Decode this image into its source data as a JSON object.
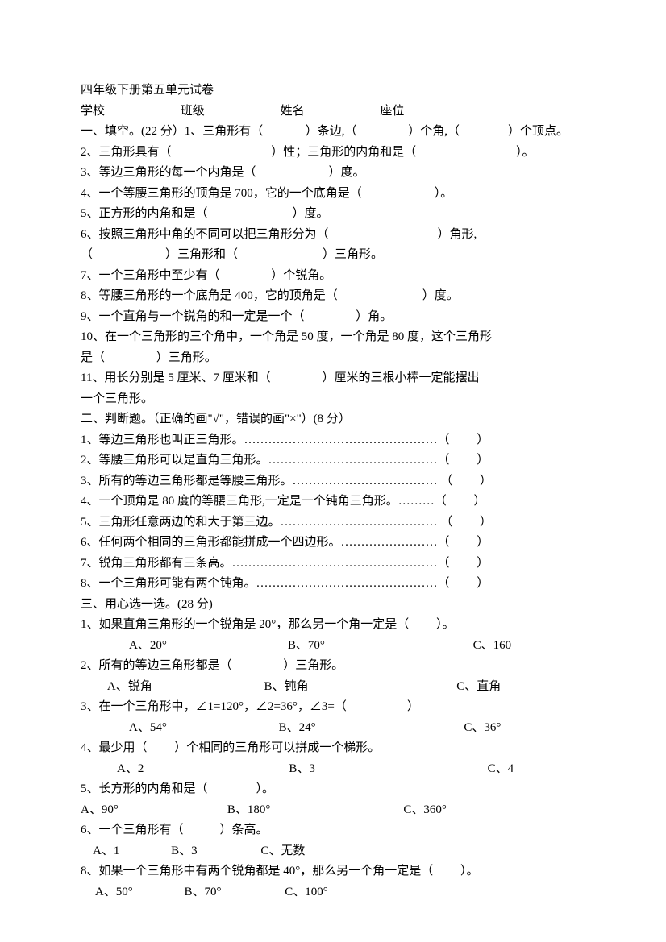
{
  "title": "四年级下册第五单元试卷",
  "header": {
    "school_lbl": "学校",
    "class_lbl": "班级",
    "name_lbl": "姓名",
    "seat_lbl": "座位"
  },
  "s1": {
    "heading_and_q1": "一、填空。(22 分）1、三角形有（ 　　　 ）条边,（　　　　 ）个角,（　　　　）个顶点。",
    "q2": "2、三角形具有（ 　　　　　　　　）性；三角形的内角和是（　　　　　　　　 ）。",
    "q3": "3、等边三角形的每一个内角是（　　　　　　）度。",
    "q4": "4、一个等腰三角形的顶角是 700，它的一个底角是（　　　　　　）。",
    "q5": "5、正方形的内角和是（　　　　　　　）度。",
    "q6_a": " 6、按照三角形中角的不同可以把三角形分为（　　　　　　　　　）角形,",
    "q6_b": "（　　　　　　）三角形和（　　　　　　　）三角形。",
    "q7": "7、一个三角形中至少有（　　　　 ）个锐角。",
    "q8": "8、等腰三角形的一个底角是 400，它的顶角是（　　　　　　　）度。",
    "q9": " 9、一个直角与一个锐角的和一定是一个（　　　　 ）角。",
    "q10_a": " 10、在一个三角形的三个角中，一个角是 50 度，一个角是 80 度，这个三角形",
    "q10_b": "是（　　　　 ）三角形。",
    "q11_a": " 11、用长分别是 5 厘米、7 厘米和（　　　　 ）厘米的三根小棒一定能摆出",
    "q11_b": "一个三角形。"
  },
  "s2": {
    "heading": "二、判断题。（正确的画\"√\"，错误的画\"×\"）(8 分）",
    "q1": " 1、等边三角形也叫正三角形。…………………………………………（　　 ）",
    "q2": " 2、等腰三角形可以是直角三角形。……………………………………（　　 ）",
    "q3": "3、所有的等边三角形都是等腰三角形。……………………………… （　　 ）",
    "q4": " 4、一个顶角是 80 度的等腰三角形,一定是一个钝角三角形。………（　　 ）",
    "q5": "5、三角形任意两边的和大于第三边。………………………………… （　　 ）",
    "q6": " 6、任何两个相同的三角形都能拼成一个四边形。……………………（　　 ）",
    "q7": " 7、锐角三角形都有三条高。……………………………………………（　　 ）",
    "q8": " 8、一个三角形可能有两个钝角。………………………………………（　　 ）"
  },
  "s3": {
    "heading": " 三、用心选一选。(28 分)",
    "q1": "1、如果直角三角形的一个锐角是 20°，那么另一个角一定是（　　 ）。",
    "q1_opts": "　　　　A、20°　　　　　　　　　　B、70°　　　　　　　　　　　　 C、160",
    "q2": "2、所有的等边三角形都是（　　　　 ）三角形。",
    "q2_opts": "　　 A、锐角　　　　　　　　　 B、钝角　　　　　　　　　　　　 C、直角",
    "q3": "3、在一个三角形中，∠1=120°，∠2=36°，∠3=（　　　　　）",
    "q3_opts": "　　　　A、54°　　　　　　　　　 B、24°　　　　　　　　　　　　 C、36°",
    "q4": "4、最少用（　　 ）个相同的三角形可以拼成一个梯形。",
    "q4_opts": "　　　A、2　　　　　　　　　　　　B、3　　　　　　　　　　　　　　 C、4",
    "q5": "5、长方形的内角和是（　　　　）。",
    "q5_opts": " A、90°　　　　　　　　　B、180°　　　　　　　　　　　C、360°",
    "q6": "6、一个三角形有（　　　）条高。",
    "q6_opts": "　A、1　　　　 B、3　　　　　 C、无数",
    "q8": "8、如果一个三角形中有两个锐角都是 40°，那么另一个角一定是（　　 ）。",
    "q8_opts": "　 A、50°　　　　 B、70°　　　　　 C、100°"
  }
}
